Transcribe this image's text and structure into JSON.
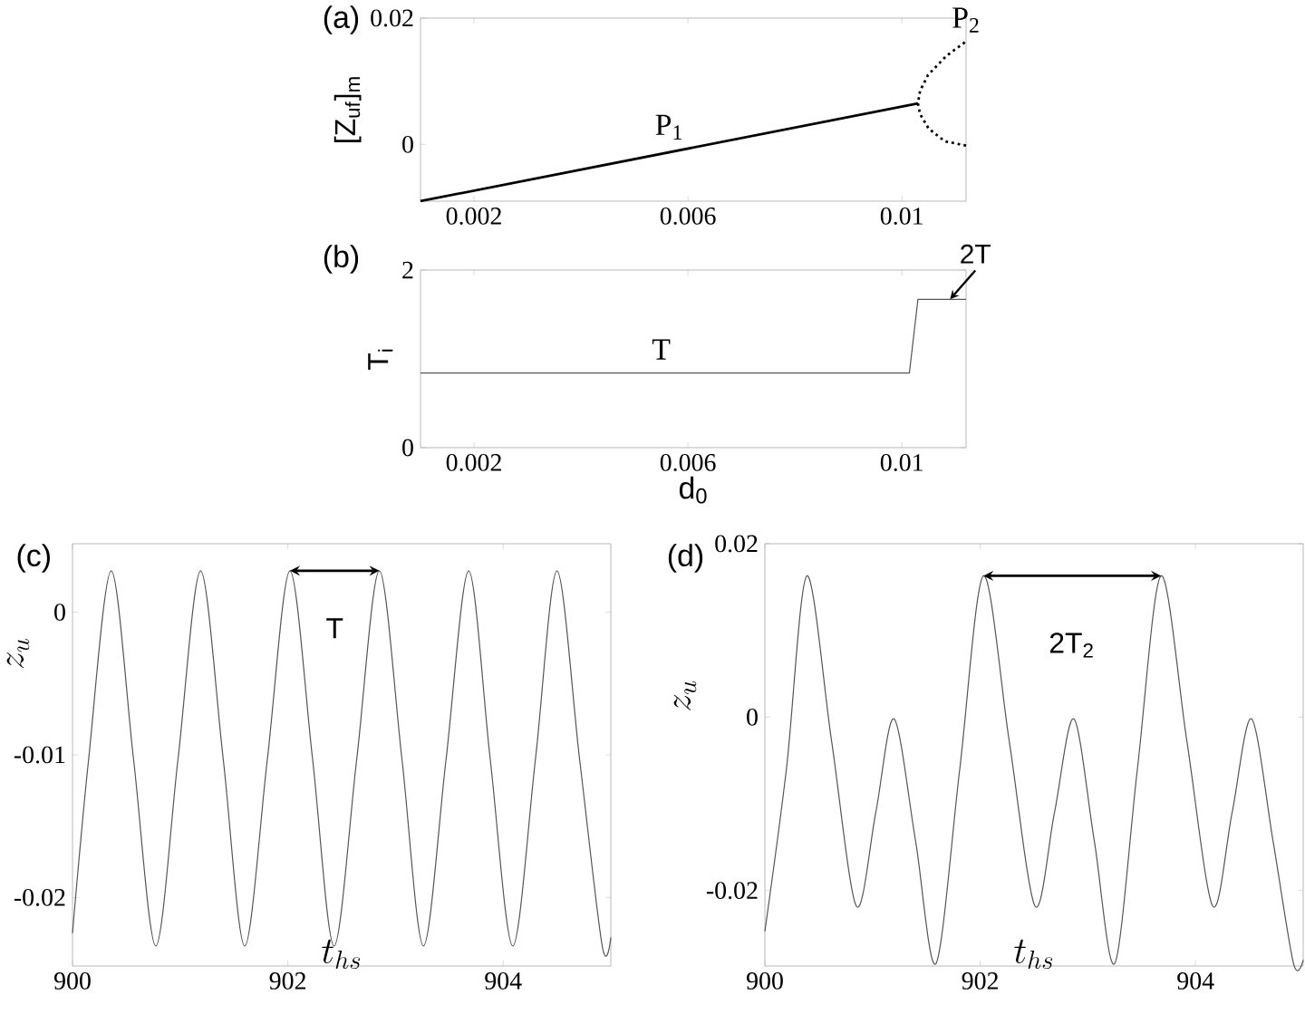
{
  "chart_data": [
    {
      "type": "line",
      "title": "(a)",
      "ylabel": "[Z$_{uf}$]$_{m}$",
      "xlim": [
        0.001,
        0.0112
      ],
      "ylim": [
        -0.009,
        0.02
      ],
      "xticks": [
        0.002,
        0.006,
        0.01
      ],
      "yticks": [
        0,
        0.02
      ],
      "series": [
        {
          "name": "P$_{1}$",
          "color": "#000000",
          "x": [
            0.001,
            0.0103
          ],
          "values": [
            -0.009,
            0.0065
          ]
        },
        {
          "name": "P$_{2}$",
          "color": "#000000",
          "line_style": "dotted",
          "x": [
            0.0112,
            0.0108,
            0.0105,
            0.01034,
            0.0103,
            0.01034,
            0.01049,
            0.01083,
            0.0112
          ],
          "values": [
            -0.0002,
            0.0005,
            0.0025,
            0.0048,
            0.0065,
            0.0085,
            0.011,
            0.014,
            0.0163
          ]
        }
      ]
    },
    {
      "type": "line",
      "title": "(b)",
      "xlabel": "d$_{0}$",
      "ylabel": "T$_{i}$",
      "xlim": [
        0.001,
        0.0112
      ],
      "ylim": [
        0,
        2
      ],
      "xticks": [
        0.002,
        0.006,
        0.01
      ],
      "yticks": [
        0,
        2
      ],
      "series": [
        {
          "color": "#555555",
          "x": [
            0.001,
            0.01014,
            0.0103,
            0.0112
          ],
          "values": [
            0.84,
            0.84,
            1.67,
            1.67
          ]
        }
      ],
      "annotations": [
        {
          "text": "T",
          "x": 0.0055,
          "y": 0.84
        },
        {
          "text": "2T",
          "x": 0.0109,
          "y": 1.67
        }
      ]
    },
    {
      "type": "line",
      "title": "(c)",
      "xlabel": "t_{hs}",
      "ylabel": "z_u",
      "xlim": [
        900,
        905
      ],
      "ylim": [
        -0.0248,
        0.0048
      ],
      "xticks": [
        900,
        902,
        904
      ],
      "yticks": [
        -0.02,
        -0.01,
        0
      ],
      "series": [
        {
          "color": "#555555",
          "x": [
            900,
            900.15,
            900.36,
            900.567,
            900.774,
            900.98,
            901.19,
            901.4,
            901.6,
            901.81,
            902.02,
            902.23,
            902.43,
            902.64,
            902.85,
            903.06,
            903.26,
            903.47,
            903.68,
            903.88,
            904.09,
            904.3,
            904.5,
            904.71,
            904.92,
            905
          ],
          "values": [
            -0.0225,
            -0.0103,
            0.0029,
            -0.0103,
            -0.0234,
            -0.0103,
            0.0029,
            -0.0103,
            -0.0234,
            -0.0103,
            0.0029,
            -0.0103,
            -0.0234,
            -0.0103,
            0.0029,
            -0.0103,
            -0.0234,
            -0.0103,
            0.0029,
            -0.0103,
            -0.0234,
            -0.0103,
            0.0029,
            -0.0103,
            -0.0234,
            -0.0228
          ]
        }
      ],
      "annotations": [
        "T"
      ]
    },
    {
      "type": "line",
      "title": "(d)",
      "xlabel": "t_{hs}",
      "ylabel": "z_u",
      "xlim": [
        900,
        905
      ],
      "ylim": [
        -0.0287,
        0.02
      ],
      "xticks": [
        900,
        902,
        904
      ],
      "yticks": [
        -0.02,
        0,
        0.02
      ],
      "series": [
        {
          "color": "#555555",
          "x": [
            900,
            900.2,
            900.39,
            900.62,
            900.85,
            901.03,
            901.2,
            901.4,
            901.59,
            901.81,
            902.03,
            902.27,
            902.51,
            902.69,
            902.87,
            903.06,
            903.25,
            903.46,
            903.68,
            903.92,
            904.16,
            904.34,
            904.52,
            904.72,
            904.91,
            905
          ],
          "values": [
            -0.0247,
            -0.006,
            0.0163,
            -0.0028,
            -0.0218,
            -0.011,
            -0.0002,
            -0.0143,
            -0.0284,
            -0.006,
            0.0163,
            -0.0028,
            -0.0218,
            -0.011,
            -0.0002,
            -0.0143,
            -0.0284,
            -0.006,
            0.0163,
            -0.0028,
            -0.0218,
            -0.011,
            -0.0002,
            -0.0143,
            -0.0284,
            -0.028
          ]
        }
      ],
      "annotations": [
        "2T$_{2}$"
      ]
    }
  ]
}
